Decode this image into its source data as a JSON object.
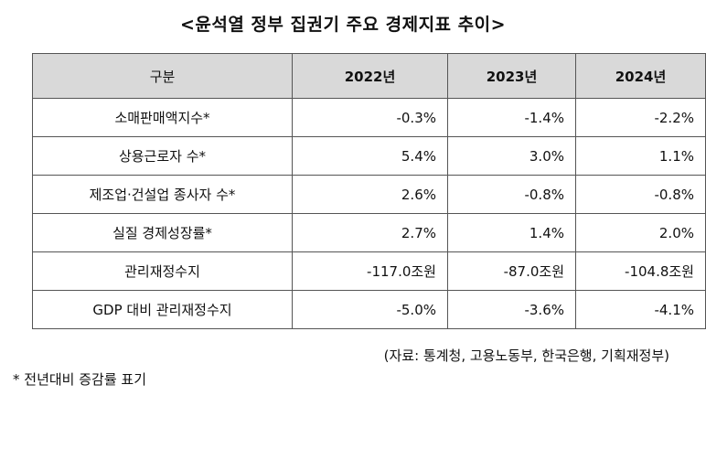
{
  "title": "<윤석열 정부 집권기 주요 경제지표 추이>",
  "table": {
    "headers": [
      "구분",
      "2022년",
      "2023년",
      "2024년"
    ],
    "rows": [
      {
        "label": "소매판매액지수*",
        "values": [
          "-0.3%",
          "-1.4%",
          "-2.2%"
        ]
      },
      {
        "label": "상용근로자 수*",
        "values": [
          "5.4%",
          "3.0%",
          "1.1%"
        ]
      },
      {
        "label": "제조업·건설업 종사자 수*",
        "values": [
          "2.6%",
          "-0.8%",
          "-0.8%"
        ]
      },
      {
        "label": "실질 경제성장률*",
        "values": [
          "2.7%",
          "1.4%",
          "2.0%"
        ]
      },
      {
        "label": "관리재정수지",
        "values": [
          "-117.0조원",
          "-87.0조원",
          "-104.8조원"
        ]
      },
      {
        "label": "GDP 대비 관리재정수지",
        "values": [
          "-5.0%",
          "-3.6%",
          "-4.1%"
        ]
      }
    ]
  },
  "source": "(자료: 통계청, 고용노동부, 한국은행, 기획재정부)",
  "footnote": "* 전년대비 증감률 표기",
  "colors": {
    "header_bg": "#d9d9d9",
    "border": "#555555"
  }
}
